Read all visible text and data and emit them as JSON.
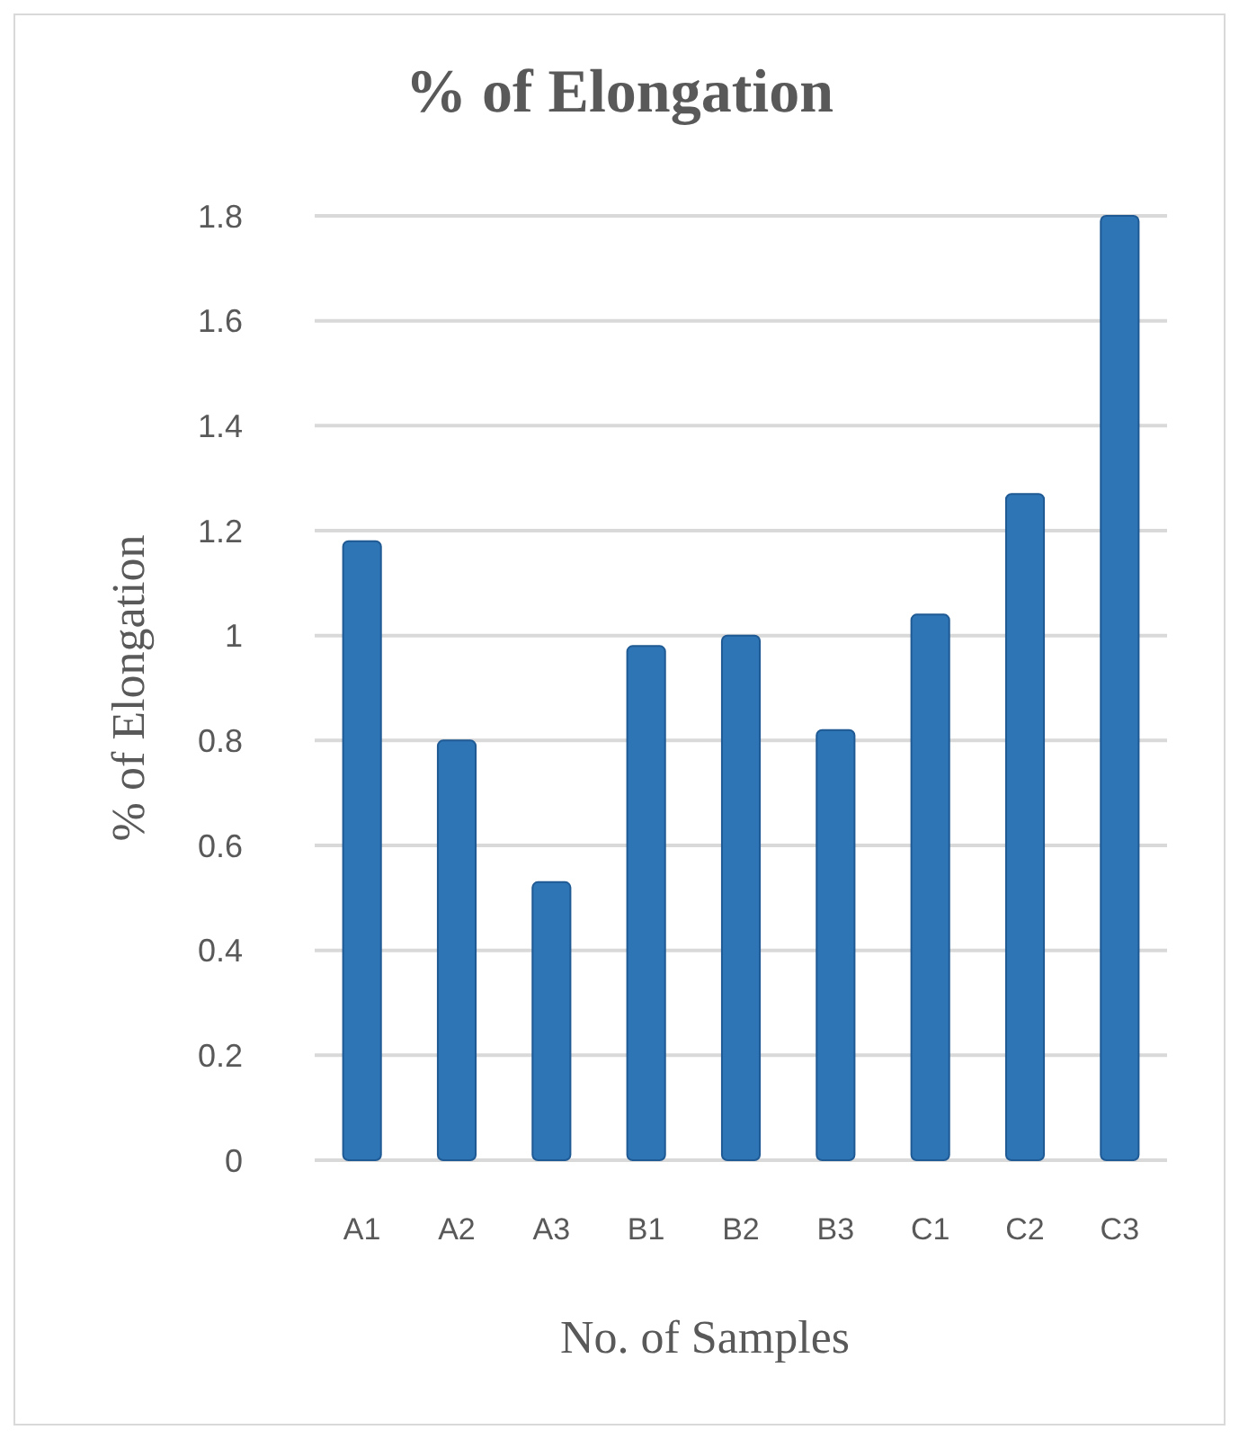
{
  "chart_data": {
    "type": "bar",
    "title": "% of Elongation",
    "xlabel": "No. of Samples",
    "ylabel": "% of Elongation",
    "categories": [
      "A1",
      "A2",
      "A3",
      "B1",
      "B2",
      "B3",
      "C1",
      "C2",
      "C3"
    ],
    "values": [
      1.18,
      0.8,
      0.53,
      0.98,
      1.0,
      0.82,
      1.04,
      1.27,
      1.8
    ],
    "color": "#2e75b6",
    "ylim": [
      0,
      1.8
    ],
    "yticks": [
      0,
      0.2,
      0.4,
      0.6,
      0.8,
      1,
      1.2,
      1.4,
      1.6,
      1.8
    ],
    "grid": "y"
  }
}
